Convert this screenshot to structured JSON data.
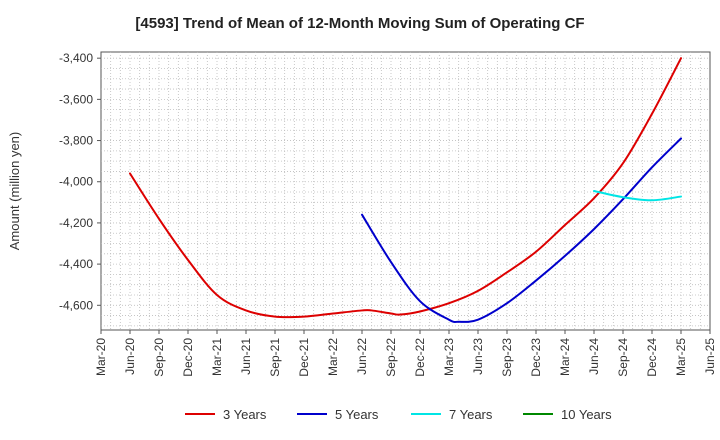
{
  "chart_data": {
    "type": "line",
    "title": "[4593]  Trend of Mean of 12-Month Moving Sum of Operating CF",
    "xlabel": "",
    "ylabel": "Amount (million yen)",
    "x_ticks": [
      "Mar-20",
      "Jun-20",
      "Sep-20",
      "Dec-20",
      "Mar-21",
      "Jun-21",
      "Sep-21",
      "Dec-21",
      "Mar-22",
      "Jun-22",
      "Sep-22",
      "Dec-22",
      "Mar-23",
      "Jun-23",
      "Sep-23",
      "Dec-23",
      "Mar-24",
      "Jun-24",
      "Sep-24",
      "Dec-24",
      "Mar-25",
      "Jun-25"
    ],
    "y_ticks": [
      -3400,
      -3600,
      -3800,
      -4000,
      -4200,
      -4400,
      -4600
    ],
    "y_tick_labels": [
      "-3,400",
      "-3,600",
      "-3,800",
      "-4,000",
      "-4,200",
      "-4,400",
      "-4,600"
    ],
    "ylim": [
      -4720,
      -3370
    ],
    "grid": true,
    "legend_position": "bottom",
    "series": [
      {
        "name": "3 Years",
        "color": "#dd0000",
        "points": [
          [
            "Jun-20",
            -3960
          ],
          [
            "Sep-20",
            -4180
          ],
          [
            "Dec-20",
            -4380
          ],
          [
            "Mar-21",
            -4550
          ],
          [
            "Jun-21",
            -4625
          ],
          [
            "Sep-21",
            -4655
          ],
          [
            "Dec-21",
            -4655
          ],
          [
            "Mar-22",
            -4640
          ],
          [
            "Jun-22",
            -4625
          ],
          [
            "Jul-22",
            -4625
          ],
          [
            "Sep-22",
            -4640
          ],
          [
            "Oct-22",
            -4645
          ],
          [
            "Dec-22",
            -4630
          ],
          [
            "Mar-23",
            -4590
          ],
          [
            "Jun-23",
            -4530
          ],
          [
            "Sep-23",
            -4440
          ],
          [
            "Dec-23",
            -4340
          ],
          [
            "Mar-24",
            -4210
          ],
          [
            "Jun-24",
            -4080
          ],
          [
            "Sep-24",
            -3910
          ],
          [
            "Dec-24",
            -3670
          ],
          [
            "Mar-25",
            -3400
          ]
        ]
      },
      {
        "name": "5 Years",
        "color": "#0000cc",
        "points": [
          [
            "Jun-22",
            -4160
          ],
          [
            "Sep-22",
            -4390
          ],
          [
            "Dec-22",
            -4580
          ],
          [
            "Mar-23",
            -4670
          ],
          [
            "Apr-23",
            -4680
          ],
          [
            "Jun-23",
            -4670
          ],
          [
            "Sep-23",
            -4590
          ],
          [
            "Dec-23",
            -4480
          ],
          [
            "Mar-24",
            -4360
          ],
          [
            "Jun-24",
            -4230
          ],
          [
            "Sep-24",
            -4085
          ],
          [
            "Dec-24",
            -3930
          ],
          [
            "Mar-25",
            -3790
          ]
        ]
      },
      {
        "name": "7 Years",
        "color": "#00e5e5",
        "points": [
          [
            "Jun-24",
            -4045
          ],
          [
            "Sep-24",
            -4075
          ],
          [
            "Dec-24",
            -4090
          ],
          [
            "Mar-25",
            -4072
          ]
        ]
      },
      {
        "name": "10 Years",
        "color": "#008800",
        "points": []
      }
    ]
  }
}
